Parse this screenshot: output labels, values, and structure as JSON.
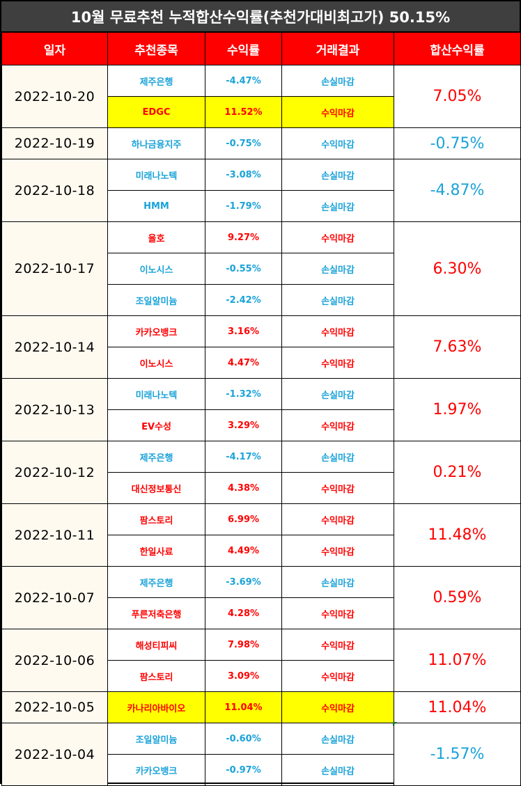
{
  "title": "10월 무료추천 누적합산수익률(추천가대비최고가) 50.15%",
  "headers": [
    "일자",
    "추천종목",
    "수익률",
    "거래결과",
    "합산수익률"
  ],
  "groups": [
    {
      "date": "2022-10-20",
      "total": "7.05%",
      "total_color": "red",
      "rows": [
        {
          "stock": "제주은행",
          "rate": "-4.47%",
          "result": "손실마감",
          "color": "blue",
          "highlight": false
        },
        {
          "stock": "EDGC",
          "rate": "11.52%",
          "result": "수익마감",
          "color": "red",
          "highlight": true
        }
      ]
    },
    {
      "date": "2022-10-19",
      "total": "-0.75%",
      "total_color": "blue",
      "rows": [
        {
          "stock": "하나금융지주",
          "rate": "-0.75%",
          "result": "수익마감",
          "color": "blue",
          "highlight": false
        }
      ]
    },
    {
      "date": "2022-10-18",
      "total": "-4.87%",
      "total_color": "blue",
      "rows": [
        {
          "stock": "미래나노텍",
          "rate": "-3.08%",
          "result": "손실마감",
          "color": "blue",
          "highlight": false
        },
        {
          "stock": "HMM",
          "rate": "-1.79%",
          "result": "손실마감",
          "color": "blue",
          "highlight": false
        }
      ]
    },
    {
      "date": "2022-10-17",
      "total": "6.30%",
      "total_color": "red",
      "rows": [
        {
          "stock": "율호",
          "rate": "9.27%",
          "result": "수익마감",
          "color": "red",
          "highlight": false
        },
        {
          "stock": "이노시스",
          "rate": "-0.55%",
          "result": "손실마감",
          "color": "blue",
          "highlight": false
        },
        {
          "stock": "조일알미늄",
          "rate": "-2.42%",
          "result": "손실마감",
          "color": "blue",
          "highlight": false
        }
      ]
    },
    {
      "date": "2022-10-14",
      "total": "7.63%",
      "total_color": "red",
      "rows": [
        {
          "stock": "카카오뱅크",
          "rate": "3.16%",
          "result": "수익마감",
          "color": "red",
          "highlight": false
        },
        {
          "stock": "이노시스",
          "rate": "4.47%",
          "result": "수익마감",
          "color": "red",
          "highlight": false
        }
      ]
    },
    {
      "date": "2022-10-13",
      "total": "1.97%",
      "total_color": "red",
      "rows": [
        {
          "stock": "미래나노텍",
          "rate": "-1.32%",
          "result": "손실마감",
          "color": "blue",
          "highlight": false
        },
        {
          "stock": "EV수성",
          "rate": "3.29%",
          "result": "수익마감",
          "color": "red",
          "highlight": false
        }
      ]
    },
    {
      "date": "2022-10-12",
      "total": "0.21%",
      "total_color": "red",
      "rows": [
        {
          "stock": "제주은행",
          "rate": "-4.17%",
          "result": "손실마감",
          "color": "blue",
          "highlight": false
        },
        {
          "stock": "대신정보통신",
          "rate": "4.38%",
          "result": "수익마감",
          "color": "red",
          "highlight": false
        }
      ]
    },
    {
      "date": "2022-10-11",
      "total": "11.48%",
      "total_color": "red",
      "rows": [
        {
          "stock": "팜스토리",
          "rate": "6.99%",
          "result": "수익마감",
          "color": "red",
          "highlight": false
        },
        {
          "stock": "한일사료",
          "rate": "4.49%",
          "result": "수익마감",
          "color": "red",
          "highlight": false
        }
      ]
    },
    {
      "date": "2022-10-07",
      "total": "0.59%",
      "total_color": "red",
      "rows": [
        {
          "stock": "제주은행",
          "rate": "-3.69%",
          "result": "손실마감",
          "color": "blue",
          "highlight": false
        },
        {
          "stock": "푸른저축은행",
          "rate": "4.28%",
          "result": "수익마감",
          "color": "red",
          "highlight": false
        }
      ]
    },
    {
      "date": "2022-10-06",
      "total": "11.07%",
      "total_color": "red",
      "rows": [
        {
          "stock": "해성티피씨",
          "rate": "7.98%",
          "result": "수익마감",
          "color": "red",
          "highlight": false
        },
        {
          "stock": "팜스토리",
          "rate": "3.09%",
          "result": "수익마감",
          "color": "red",
          "highlight": false
        }
      ]
    },
    {
      "date": "2022-10-05",
      "total": "11.04%",
      "total_color": "red",
      "rows": [
        {
          "stock": "카나리아바이오",
          "rate": "11.04%",
          "result": "수익마감",
          "color": "red",
          "highlight": true
        }
      ]
    },
    {
      "date": "2022-10-04",
      "total": "-1.57%",
      "total_color": "blue",
      "rows": [
        {
          "stock": "조일알미늄",
          "rate": "-0.60%",
          "result": "손실마감",
          "color": "blue",
          "highlight": false
        },
        {
          "stock": "카카오뱅크",
          "rate": "-0.97%",
          "result": "손실마감",
          "color": "blue",
          "highlight": false
        }
      ]
    }
  ]
}
